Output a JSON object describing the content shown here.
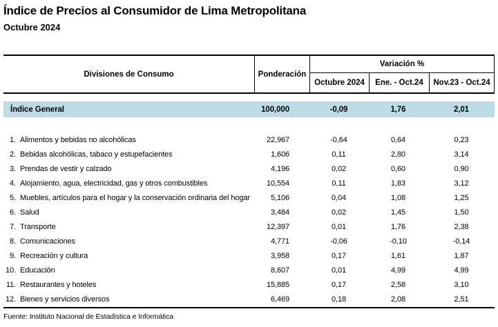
{
  "title": "Índice de Precios al Consumidor de Lima Metropolitana",
  "subtitle": "Octubre 2024",
  "table": {
    "headers": {
      "divisions": "Divisiones de Consumo",
      "weight": "Ponderación",
      "variation_group": "Variación %",
      "variation_cols": [
        "Octubre 2024",
        "Ene. - Oct.24",
        "Nov.23 - Oct.24"
      ]
    },
    "general": {
      "label": "Índice General",
      "weight": "100,000",
      "values": [
        "-0,09",
        "1,76",
        "2,01"
      ]
    },
    "rows": [
      {
        "num": "1.",
        "label": "Alimentos y bebidas no alcohólicas",
        "weight": "22,967",
        "values": [
          "-0,64",
          "0,64",
          "0,23"
        ]
      },
      {
        "num": "2.",
        "label": "Bebidas alcohólicas, tabaco y estupefacientes",
        "weight": "1,606",
        "values": [
          "0,11",
          "2,80",
          "3,14"
        ]
      },
      {
        "num": "3.",
        "label": "Prendas de vestir y calzado",
        "weight": "4,196",
        "values": [
          "0,02",
          "0,60",
          "0,90"
        ]
      },
      {
        "num": "4.",
        "label": "Alojamiento, agua, electricidad, gas y otros combustibles",
        "weight": "10,554",
        "values": [
          "0,11",
          "1,83",
          "3,12"
        ]
      },
      {
        "num": "5.",
        "label": "Muebles, artículos para el hogar y la conservación ordinaria del hogar",
        "weight": "5,106",
        "values": [
          "0,04",
          "1,08",
          "1,25"
        ]
      },
      {
        "num": "6.",
        "label": "Salud",
        "weight": "3,484",
        "values": [
          "0,02",
          "1,45",
          "1,50"
        ]
      },
      {
        "num": "7.",
        "label": "Transporte",
        "weight": "12,397",
        "values": [
          "0,01",
          "1,76",
          "2,38"
        ]
      },
      {
        "num": "8.",
        "label": "Comunicaciones",
        "weight": "4,771",
        "values": [
          "-0,06",
          "-0,10",
          "-0,14"
        ]
      },
      {
        "num": "9.",
        "label": "Recreación y cultura",
        "weight": "3,958",
        "values": [
          "0,17",
          "1,61",
          "1,87"
        ]
      },
      {
        "num": "10.",
        "label": "Educación",
        "weight": "8,607",
        "values": [
          "0,01",
          "4,99",
          "4,99"
        ]
      },
      {
        "num": "11.",
        "label": "Restaurantes y hoteles",
        "weight": "15,885",
        "values": [
          "0,17",
          "2,58",
          "3,10"
        ]
      },
      {
        "num": "12.",
        "label": "Bienes y servicios diversos",
        "weight": "6,469",
        "values": [
          "0,18",
          "2,08",
          "2,51"
        ]
      }
    ]
  },
  "footer": "Fuente: Instituto Nacional de Estadística e Informática",
  "colors": {
    "highlight_row": "#BDDCE6",
    "border": "#000000",
    "text": "#000000"
  }
}
